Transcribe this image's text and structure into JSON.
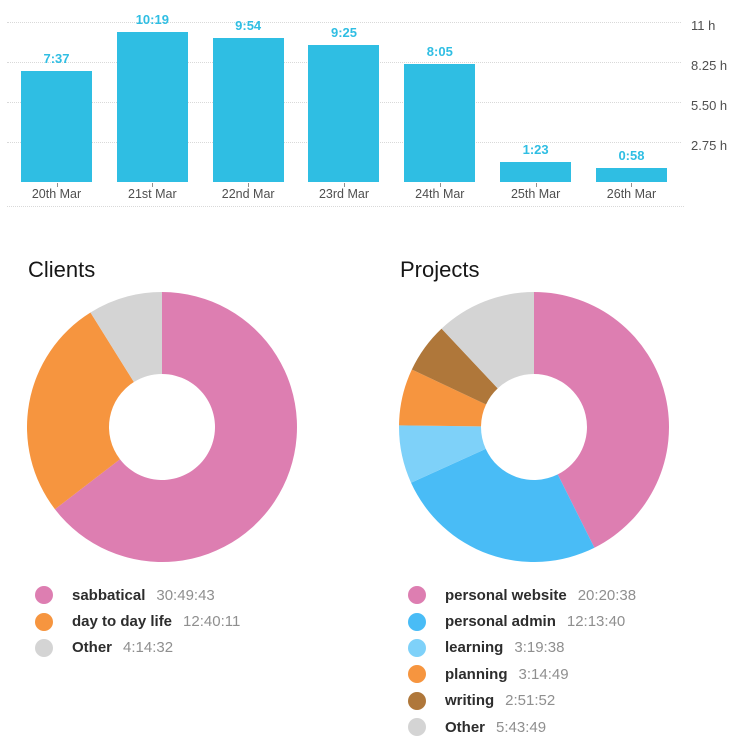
{
  "chart_data": [
    {
      "type": "bar",
      "title": "",
      "categories": [
        "20th Mar",
        "21st Mar",
        "22nd Mar",
        "23rd Mar",
        "24th Mar",
        "25th Mar",
        "26th Mar"
      ],
      "values": [
        "7:37",
        "10:19",
        "9:54",
        "9:25",
        "8:05",
        "1:23",
        "0:58"
      ],
      "values_unit": "hours:minutes",
      "ylim": [
        0,
        11
      ],
      "yticks": [
        {
          "label": "11 h",
          "value": 11
        },
        {
          "label": "8.25 h",
          "value": 8.25
        },
        {
          "label": "5.50 h",
          "value": 5.5
        },
        {
          "label": "2.75 h",
          "value": 2.75
        }
      ],
      "grid": "dotted-horizontal",
      "legend_position": "none",
      "bar_color": "#2fbee3",
      "value_label_color": "#2fbee3"
    },
    {
      "type": "pie",
      "donut": true,
      "title": "Clients",
      "start": "top",
      "direction": "clockwise",
      "legend_position": "below-left",
      "slices": [
        {
          "label": "sabbatical",
          "duration": "30:49:43",
          "color": "#dd7eb1"
        },
        {
          "label": "day to day life",
          "duration": "12:40:11",
          "color": "#f6953f"
        },
        {
          "label": "Other",
          "duration": "4:14:32",
          "color": "#d4d4d4"
        }
      ]
    },
    {
      "type": "pie",
      "donut": true,
      "title": "Projects",
      "start": "top",
      "direction": "clockwise",
      "legend_position": "below-left",
      "slices": [
        {
          "label": "personal website",
          "duration": "20:20:38",
          "color": "#dd7eb1"
        },
        {
          "label": "personal admin",
          "duration": "12:13:40",
          "color": "#49bcf6"
        },
        {
          "label": "learning",
          "duration": "3:19:38",
          "color": "#7ed1f9"
        },
        {
          "label": "planning",
          "duration": "3:14:49",
          "color": "#f6953f"
        },
        {
          "label": "writing",
          "duration": "2:51:52",
          "color": "#af773a"
        },
        {
          "label": "Other",
          "duration": "5:43:49",
          "color": "#d4d4d4"
        }
      ]
    }
  ]
}
